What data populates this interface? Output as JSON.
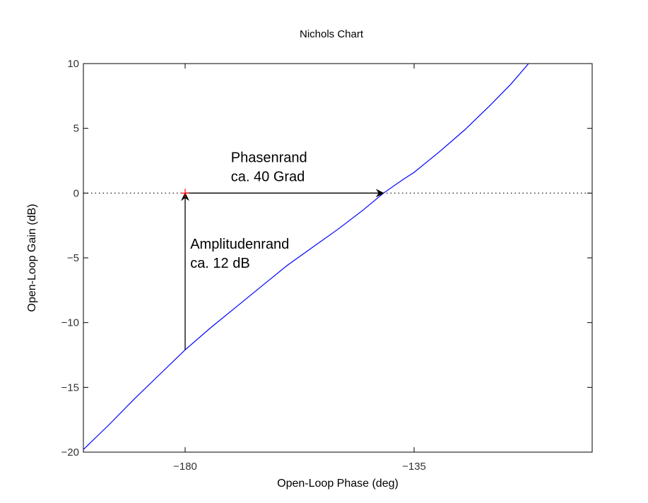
{
  "chart_data": {
    "type": "line",
    "title": "Nichols Chart",
    "xlabel": "Open-Loop Phase (deg)",
    "ylabel": "Open-Loop Gain (dB)",
    "xlim": [
      -200,
      -100
    ],
    "ylim": [
      -20,
      10
    ],
    "x_ticks": [
      {
        "value": -180,
        "label": "−180"
      },
      {
        "value": -135,
        "label": "−135"
      }
    ],
    "y_ticks": [
      {
        "value": 10,
        "label": "10"
      },
      {
        "value": 5,
        "label": "5"
      },
      {
        "value": 0,
        "label": "0"
      },
      {
        "value": -5,
        "label": "−5"
      },
      {
        "value": -10,
        "label": "−10"
      },
      {
        "value": -15,
        "label": "−15"
      },
      {
        "value": -20,
        "label": "−20"
      }
    ],
    "grid": false,
    "series": [
      {
        "color": "#0000ff",
        "x": [
          -200,
          -195,
          -190,
          -185,
          -180,
          -175,
          -170,
          -165,
          -160,
          -155,
          -150,
          -145,
          -141,
          -137,
          -135,
          -130,
          -125,
          -120,
          -116,
          -112.5
        ],
        "y": [
          -19.8,
          -17.9,
          -15.9,
          -14.0,
          -12.1,
          -10.4,
          -8.8,
          -7.2,
          -5.6,
          -4.2,
          -2.8,
          -1.3,
          0,
          1.1,
          1.6,
          3.2,
          4.9,
          6.8,
          8.4,
          10.0
        ]
      }
    ],
    "reference_line": {
      "y": 0,
      "style": "dotted",
      "color": "#000000"
    },
    "critical_point": {
      "x": -180,
      "y": 0,
      "marker": "+",
      "color": "#ff0000"
    },
    "annotations": [
      {
        "lines": [
          "Phasenrand",
          "ca. 40 Grad"
        ],
        "x": -171,
        "y": 2.4
      },
      {
        "lines": [
          "Amplitudenrand",
          "ca. 12 dB"
        ],
        "x": -179,
        "y": -4.3
      }
    ],
    "arrows": [
      {
        "name": "phase-margin-arrow",
        "from": [
          -180,
          0
        ],
        "to": [
          -141,
          0
        ]
      },
      {
        "name": "gain-margin-arrow",
        "from": [
          -180,
          -12.1
        ],
        "to": [
          -180,
          0
        ]
      }
    ]
  }
}
